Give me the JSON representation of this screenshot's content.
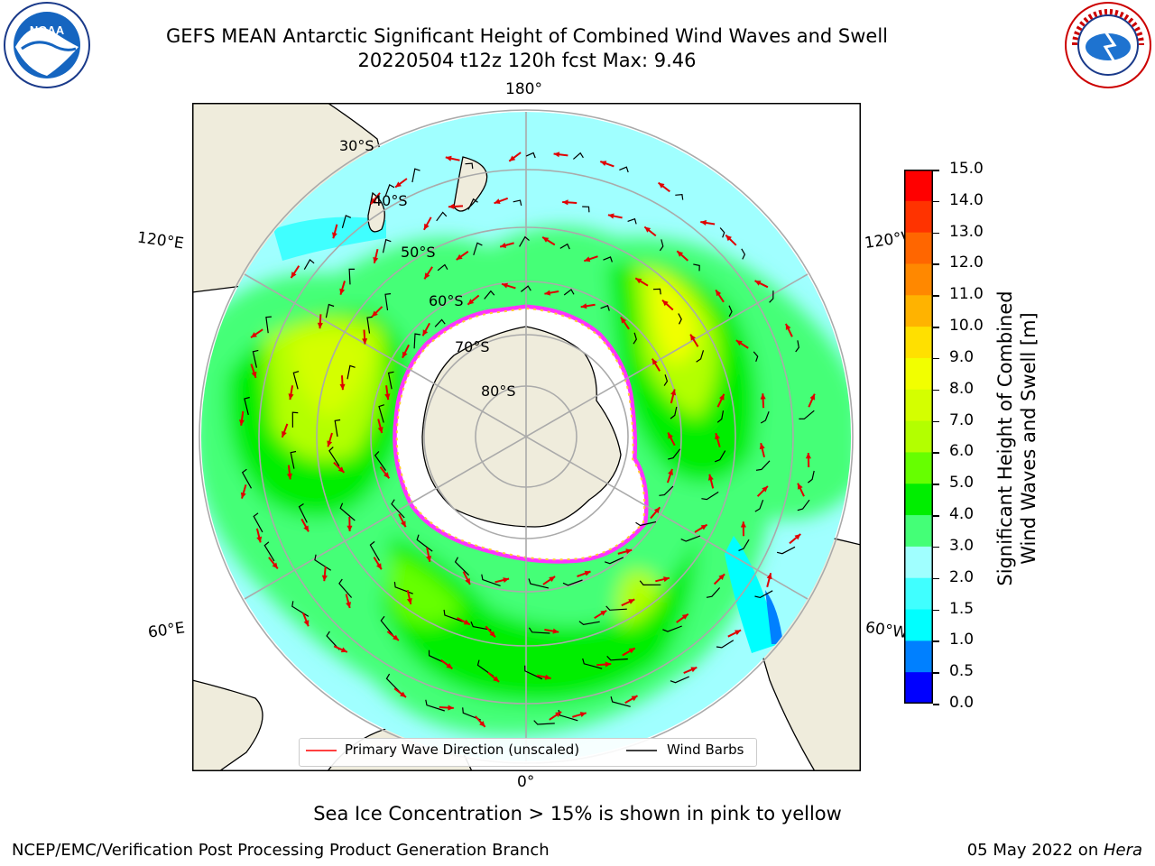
{
  "title": {
    "line1": "GEFS MEAN Antarctic Significant Height of Combined Wind Waves and Swell",
    "line2": "20220504 t12z 120h fcst   Max: 9.46"
  },
  "logos": {
    "left": {
      "icon": "noaa-logo",
      "text": "NOAA"
    },
    "right": {
      "icon": "nws-logo",
      "text": "NATIONAL WEATHER SERVICE"
    }
  },
  "map": {
    "projection": "south-polar-stereographic",
    "longitude_labels": [
      "180°",
      "120°E",
      "120°W",
      "60°E",
      "60°W",
      "0°"
    ],
    "latitude_labels": [
      "30°S",
      "40°S",
      "50°S",
      "60°S",
      "70°S",
      "80°S"
    ]
  },
  "legend": {
    "wave_direction": "Primary Wave Direction (unscaled)",
    "wind_barbs": "Wind Barbs"
  },
  "colorbar": {
    "label_line1": "Significant Height of Combined",
    "label_line2": "Wind Waves and Swell [m]",
    "ticks": [
      "15.0",
      "14.0",
      "13.0",
      "12.0",
      "11.0",
      "10.0",
      "9.0",
      "8.0",
      "7.0",
      "6.0",
      "5.0",
      "4.0",
      "3.0",
      "2.0",
      "1.5",
      "1.0",
      "0.5",
      "0.0"
    ],
    "colors": [
      "#ff0000",
      "#ff3300",
      "#ff6600",
      "#ff8800",
      "#ffb300",
      "#ffe000",
      "#f2ff00",
      "#d4ff00",
      "#b3ff00",
      "#66ff00",
      "#00ee00",
      "#44ff77",
      "#a0ffff",
      "#40ffff",
      "#00ffff",
      "#0080ff",
      "#0000ff"
    ]
  },
  "ice_note": "Sea Ice Concentration > 15% is shown in pink to yellow",
  "footer": {
    "left": "NCEP/EMC/Verification Post Processing Product Generation Branch",
    "date": "05 May 2022 on ",
    "host": "Hera"
  }
}
